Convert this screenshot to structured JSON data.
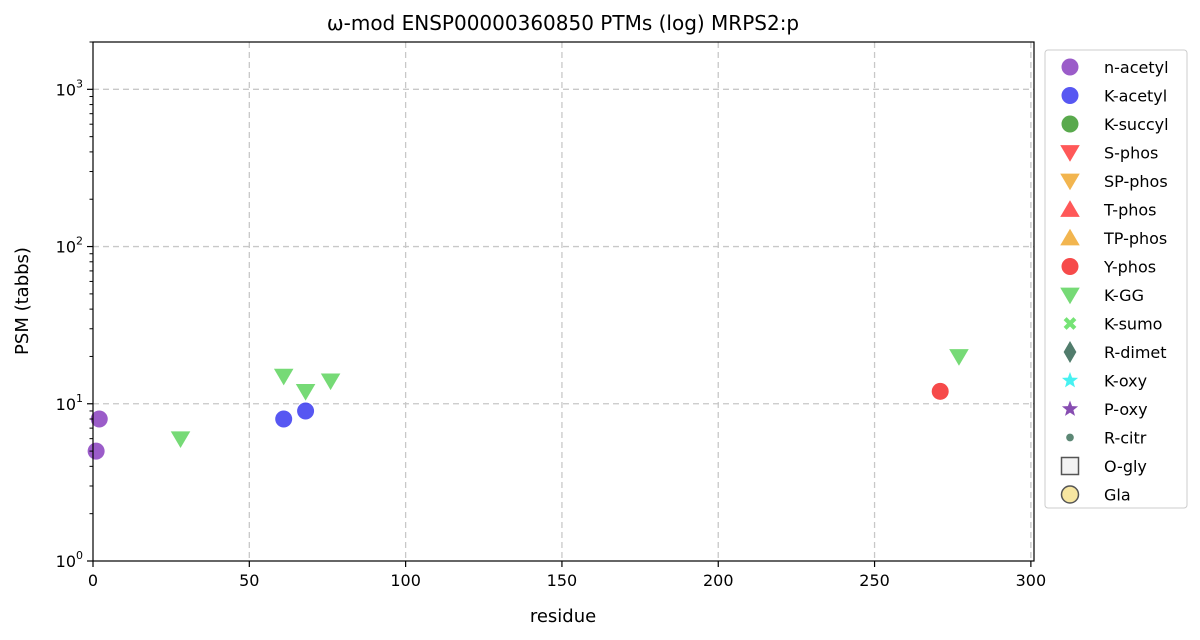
{
  "chart_data": {
    "type": "scatter",
    "title": "ω-mod ENSP00000360850 PTMs (log) MRPS2:p",
    "xlabel": "residue",
    "ylabel": "PSM (tabbs)",
    "xlim": [
      0,
      301
    ],
    "ylim": [
      1,
      2000
    ],
    "yscale": "log",
    "grid": true,
    "legend_position": "outside-right",
    "x_ticks": [
      0,
      50,
      100,
      150,
      200,
      250,
      300
    ],
    "y_ticks": [
      {
        "value": 1,
        "base": "10",
        "exp": "0"
      },
      {
        "value": 10,
        "base": "10",
        "exp": "1"
      },
      {
        "value": 100,
        "base": "10",
        "exp": "2"
      },
      {
        "value": 1000,
        "base": "10",
        "exp": "3"
      }
    ],
    "series": [
      {
        "name": "n-acetyl",
        "marker": "circle",
        "color": "#8a3fbf",
        "points": [
          [
            1,
            5
          ],
          [
            2,
            8
          ]
        ]
      },
      {
        "name": "K-acetyl",
        "marker": "circle",
        "color": "#3a3af0",
        "points": [
          [
            61,
            8
          ],
          [
            68,
            9
          ]
        ]
      },
      {
        "name": "K-succyl",
        "marker": "circle",
        "color": "#3c9a2e",
        "points": []
      },
      {
        "name": "S-phos",
        "marker": "triangle-down",
        "color": "#ff3b3b",
        "points": []
      },
      {
        "name": "SP-phos",
        "marker": "triangle-down",
        "color": "#f0a830",
        "points": []
      },
      {
        "name": "T-phos",
        "marker": "triangle-up",
        "color": "#ff3b3b",
        "points": []
      },
      {
        "name": "TP-phos",
        "marker": "triangle-up",
        "color": "#f0a830",
        "points": []
      },
      {
        "name": "Y-phos",
        "marker": "circle",
        "color": "#f52a2a",
        "points": [
          [
            271,
            12
          ]
        ]
      },
      {
        "name": "K-GG",
        "marker": "triangle-down",
        "color": "#5ed45e",
        "points": [
          [
            28,
            6
          ],
          [
            61,
            15
          ],
          [
            68,
            12
          ],
          [
            76,
            14
          ],
          [
            277,
            20
          ]
        ]
      },
      {
        "name": "K-sumo",
        "marker": "x",
        "color": "#66e066",
        "points": []
      },
      {
        "name": "R-dimet",
        "marker": "diamond",
        "color": "#3e6e5c",
        "points": []
      },
      {
        "name": "K-oxy",
        "marker": "star",
        "color": "#33f0f0",
        "points": []
      },
      {
        "name": "P-oxy",
        "marker": "star",
        "color": "#7a3aa8",
        "points": []
      },
      {
        "name": "R-citr",
        "marker": "small-circle",
        "color": "#4a7a66",
        "points": []
      },
      {
        "name": "O-gly",
        "marker": "square-open",
        "color": "#555555",
        "points": []
      },
      {
        "name": "Gla",
        "marker": "circle-open",
        "color": "#f5e08a",
        "points": []
      }
    ]
  }
}
